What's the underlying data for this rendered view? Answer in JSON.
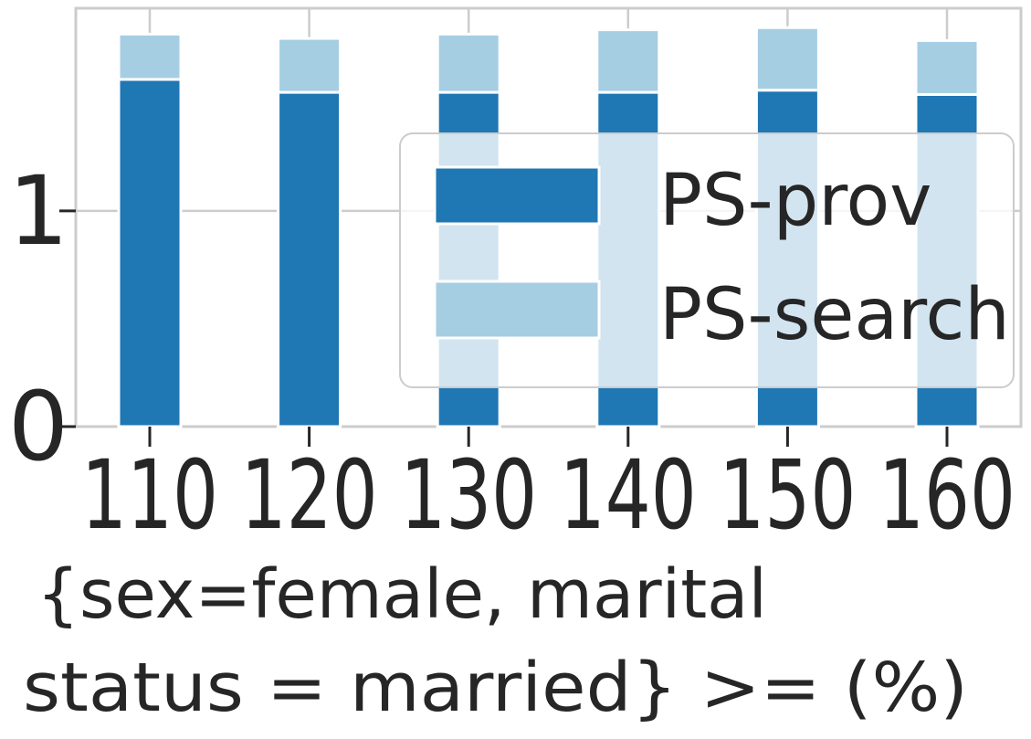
{
  "chart_data": {
    "type": "bar",
    "stacked": true,
    "categories": [
      "110",
      "120",
      "130",
      "140",
      "150",
      "160"
    ],
    "series": [
      {
        "name": "PS-prov",
        "color": "#1f77b4",
        "values": [
          1.61,
          1.55,
          1.55,
          1.55,
          1.56,
          1.54
        ]
      },
      {
        "name": "PS-search",
        "color": "#a6cee3",
        "values": [
          0.21,
          0.25,
          0.27,
          0.29,
          0.29,
          0.25
        ]
      }
    ],
    "xlabel": [
      "{sex=female, marital",
      "status = married} >= (%)"
    ],
    "ylabel": "",
    "yticks": [
      "0",
      "1"
    ],
    "ylim": [
      0,
      1.94
    ],
    "grid": true,
    "legend_position": "right"
  }
}
